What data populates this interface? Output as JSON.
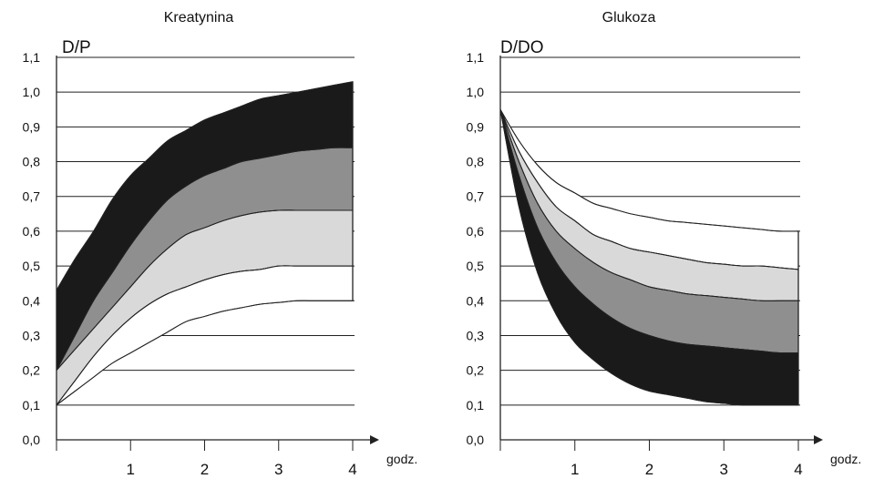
{
  "chart_data": [
    {
      "type": "area",
      "title": "Kreatynina",
      "ylabel": "D/P",
      "xlabel": "godz.",
      "x_ticks": [
        "1",
        "2",
        "3",
        "4"
      ],
      "y_ticks": [
        "0,0",
        "0,1",
        "0,2",
        "0,3",
        "0,4",
        "0,5",
        "0,6",
        "0,7",
        "0,8",
        "0,9",
        "1,0",
        "1,1"
      ],
      "xlim": [
        0,
        4
      ],
      "ylim": [
        0,
        1.1
      ],
      "grid": true,
      "x": [
        0,
        0.25,
        0.5,
        0.75,
        1,
        1.25,
        1.5,
        1.75,
        2,
        2.25,
        2.5,
        2.75,
        3,
        3.25,
        3.5,
        3.75,
        4
      ],
      "boundaries": [
        {
          "values": [
            0.43,
            0.52,
            0.6,
            0.69,
            0.76,
            0.81,
            0.86,
            0.89,
            0.92,
            0.94,
            0.96,
            0.98,
            0.99,
            1.0,
            1.01,
            1.02,
            1.03
          ]
        },
        {
          "values": [
            0.2,
            0.3,
            0.4,
            0.48,
            0.56,
            0.63,
            0.69,
            0.73,
            0.76,
            0.78,
            0.8,
            0.81,
            0.82,
            0.83,
            0.835,
            0.84,
            0.84
          ]
        },
        {
          "values": [
            0.2,
            0.26,
            0.32,
            0.38,
            0.44,
            0.5,
            0.55,
            0.59,
            0.61,
            0.63,
            0.645,
            0.655,
            0.66,
            0.66,
            0.66,
            0.66,
            0.66
          ]
        },
        {
          "values": [
            0.1,
            0.17,
            0.24,
            0.3,
            0.35,
            0.39,
            0.42,
            0.44,
            0.46,
            0.475,
            0.485,
            0.49,
            0.5,
            0.5,
            0.5,
            0.5,
            0.5
          ]
        },
        {
          "values": [
            0.1,
            0.14,
            0.18,
            0.22,
            0.25,
            0.28,
            0.31,
            0.34,
            0.355,
            0.37,
            0.38,
            0.39,
            0.395,
            0.4,
            0.4,
            0.4,
            0.4
          ]
        }
      ],
      "band_colors": [
        "#1a1a1a",
        "#8f8f8f",
        "#d9d9d9",
        "#ffffff"
      ]
    },
    {
      "type": "area",
      "title": "Glukoza",
      "ylabel": "D/DO",
      "xlabel": "godz.",
      "x_ticks": [
        "1",
        "2",
        "3",
        "4"
      ],
      "y_ticks": [
        "0,0",
        "0,1",
        "0,2",
        "0,3",
        "0,4",
        "0,5",
        "0,6",
        "0,7",
        "0,8",
        "0,9",
        "1,0",
        "1,1"
      ],
      "xlim": [
        0,
        4
      ],
      "ylim": [
        0,
        1.1
      ],
      "grid": true,
      "x": [
        0,
        0.25,
        0.5,
        0.75,
        1,
        1.25,
        1.5,
        1.75,
        2,
        2.25,
        2.5,
        2.75,
        3,
        3.25,
        3.5,
        3.75,
        4
      ],
      "boundaries": [
        {
          "values": [
            0.95,
            0.86,
            0.79,
            0.74,
            0.71,
            0.68,
            0.665,
            0.65,
            0.64,
            0.63,
            0.625,
            0.62,
            0.615,
            0.61,
            0.605,
            0.6,
            0.6
          ]
        },
        {
          "values": [
            0.95,
            0.83,
            0.74,
            0.67,
            0.63,
            0.59,
            0.57,
            0.55,
            0.54,
            0.53,
            0.52,
            0.51,
            0.505,
            0.5,
            0.5,
            0.495,
            0.49
          ]
        },
        {
          "values": [
            0.95,
            0.8,
            0.68,
            0.6,
            0.55,
            0.51,
            0.48,
            0.46,
            0.44,
            0.43,
            0.42,
            0.415,
            0.41,
            0.405,
            0.4,
            0.4,
            0.4
          ]
        },
        {
          "values": [
            0.95,
            0.76,
            0.61,
            0.51,
            0.44,
            0.39,
            0.35,
            0.32,
            0.3,
            0.285,
            0.275,
            0.27,
            0.265,
            0.26,
            0.255,
            0.25,
            0.25
          ]
        },
        {
          "values": [
            0.95,
            0.67,
            0.48,
            0.36,
            0.28,
            0.23,
            0.19,
            0.16,
            0.14,
            0.13,
            0.12,
            0.11,
            0.105,
            0.1,
            0.1,
            0.1,
            0.1
          ]
        }
      ],
      "band_colors": [
        "#ffffff",
        "#d9d9d9",
        "#8f8f8f",
        "#1a1a1a"
      ]
    }
  ]
}
